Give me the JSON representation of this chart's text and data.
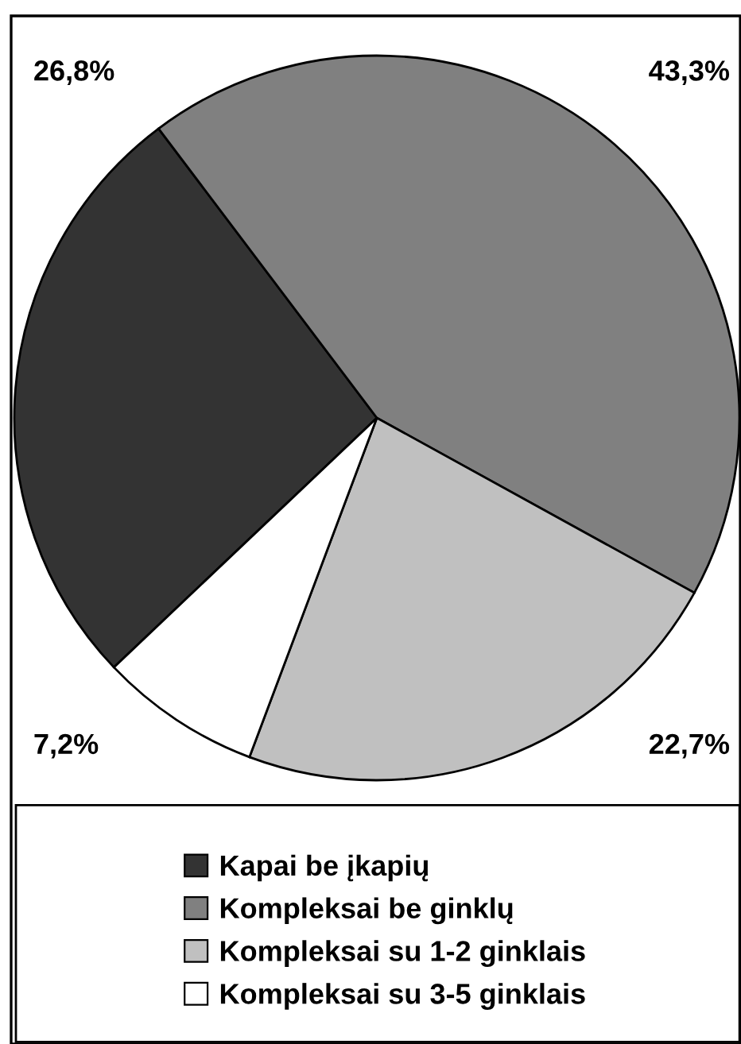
{
  "chart_data": {
    "type": "pie",
    "categories": [
      "Kapai be įkapių",
      "Kompleksai be ginklų",
      "Kompleksai su 1-2 ginklais",
      "Kompleksai su 3-5 ginklais"
    ],
    "values": [
      26.8,
      43.3,
      22.7,
      7.2
    ],
    "value_labels": [
      "26,8%",
      "43,3%",
      "22,7%",
      "7,2%"
    ],
    "colors": [
      "#333333",
      "#808080",
      "#c0c0c0",
      "#ffffff"
    ],
    "legend": "bottom"
  }
}
